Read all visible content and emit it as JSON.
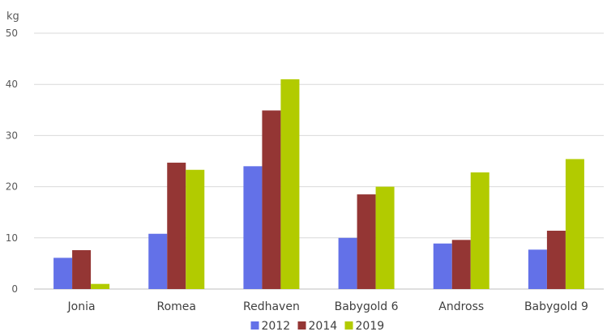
{
  "chart_data": {
    "type": "bar",
    "ylabel": "kg",
    "ylim": [
      0,
      50
    ],
    "yticks": [
      0,
      10,
      20,
      30,
      40,
      50
    ],
    "grid": true,
    "legend_position": "bottom",
    "categories": [
      "Jonia",
      "Romea",
      "Redhaven",
      "Babygold 6",
      "Andross",
      "Babygold 9"
    ],
    "series": [
      {
        "name": "2012",
        "color": "#6371e8",
        "values": [
          6.1,
          10.8,
          24.0,
          10.0,
          8.9,
          7.7
        ]
      },
      {
        "name": "2014",
        "color": "#943634",
        "values": [
          7.6,
          24.7,
          34.9,
          18.5,
          9.6,
          11.4
        ]
      },
      {
        "name": "2019",
        "color": "#b2cb00",
        "values": [
          1.0,
          23.3,
          41.0,
          20.0,
          22.8,
          25.4
        ]
      }
    ]
  }
}
